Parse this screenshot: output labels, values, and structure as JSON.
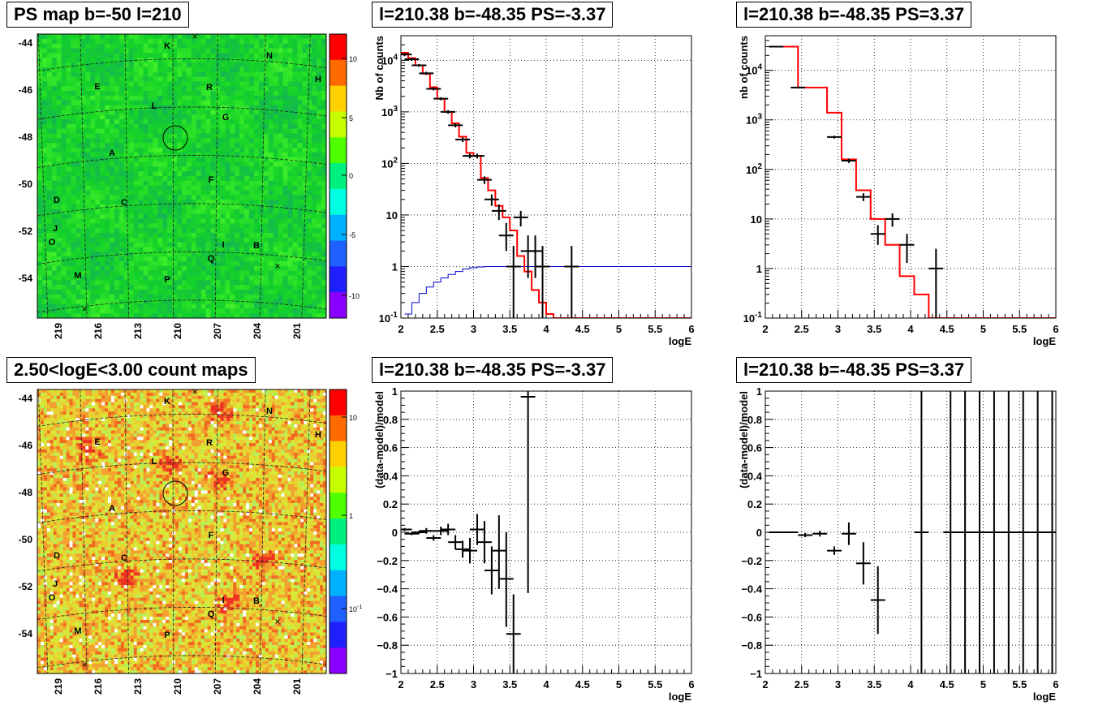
{
  "map1": {
    "title": "PS map b=-50 l=210",
    "yticks": [
      "-44",
      "-46",
      "-48",
      "-50",
      "-52",
      "-54"
    ],
    "xticks": [
      "219",
      "216",
      "213",
      "210",
      "207",
      "204",
      "201"
    ],
    "colorbar_ticks": [
      "10",
      "5",
      "0",
      "-5",
      "-10"
    ],
    "labels": [
      "K",
      "N",
      "H",
      "E",
      "R",
      "L",
      "G",
      "A",
      "F",
      "D",
      "C",
      "J",
      "O",
      "I",
      "B",
      "Q",
      "M",
      "P"
    ]
  },
  "map2": {
    "title": "2.50<logE<3.00 count maps",
    "yticks": [
      "-44",
      "-46",
      "-48",
      "-50",
      "-52",
      "-54"
    ],
    "xticks": [
      "219",
      "216",
      "213",
      "210",
      "207",
      "204",
      "201"
    ],
    "colorbar_ticks": [
      "10",
      "1",
      "10-1"
    ],
    "labels": [
      "K",
      "N",
      "H",
      "E",
      "R",
      "L",
      "G",
      "A",
      "F",
      "D",
      "C",
      "J",
      "O",
      "I",
      "B",
      "Q",
      "M",
      "P"
    ]
  },
  "chart_data": [
    {
      "id": "spec_neg",
      "type": "line",
      "title": "l=210.38 b=-48.35 PS=-3.37",
      "xlabel": "logE",
      "ylabel": "Nb of counts",
      "xlim": [
        2,
        6
      ],
      "ylim": [
        0.1,
        30000
      ],
      "yscale": "log",
      "xticks": [
        "2",
        "2.5",
        "3",
        "3.5",
        "4",
        "4.5",
        "5",
        "5.5",
        "6"
      ],
      "yticks": [
        "10^-1",
        "1",
        "10",
        "10^2",
        "10^3",
        "10^4"
      ],
      "grid": true,
      "model_red": {
        "edges": [
          2.0,
          2.1,
          2.2,
          2.3,
          2.4,
          2.5,
          2.6,
          2.7,
          2.8,
          2.9,
          3.0,
          3.1,
          3.2,
          3.3,
          3.4,
          3.5,
          3.6,
          3.7,
          3.8,
          3.9,
          4.0,
          4.1,
          6.0
        ],
        "values": [
          14000,
          11000,
          8000,
          5500,
          3000,
          1800,
          1000,
          600,
          330,
          160,
          140,
          52,
          30,
          15,
          9,
          5,
          1.6,
          0.8,
          0.35,
          0.2,
          0.12,
          0.1
        ]
      },
      "model_blue": {
        "edges": [
          2.05,
          2.15,
          2.25,
          2.35,
          2.45,
          2.55,
          2.65,
          2.75,
          2.85,
          2.95,
          3.05,
          3.15,
          3.25,
          3.45,
          6.0
        ],
        "values": [
          0.12,
          0.2,
          0.3,
          0.4,
          0.5,
          0.6,
          0.7,
          0.8,
          0.9,
          0.95,
          0.98,
          1.0,
          1.0,
          1.0
        ]
      },
      "points": [
        {
          "x": 2.05,
          "y": 13000,
          "lo": 12000,
          "hi": 14000
        },
        {
          "x": 2.15,
          "y": 10500,
          "lo": 9800,
          "hi": 11200
        },
        {
          "x": 2.25,
          "y": 8000,
          "lo": 7500,
          "hi": 8500
        },
        {
          "x": 2.35,
          "y": 5600,
          "lo": 5200,
          "hi": 6000
        },
        {
          "x": 2.45,
          "y": 2800,
          "lo": 2600,
          "hi": 3000
        },
        {
          "x": 2.55,
          "y": 1800,
          "lo": 1680,
          "hi": 1920
        },
        {
          "x": 2.65,
          "y": 1000,
          "lo": 920,
          "hi": 1080
        },
        {
          "x": 2.75,
          "y": 550,
          "lo": 500,
          "hi": 600
        },
        {
          "x": 2.85,
          "y": 290,
          "lo": 260,
          "hi": 320
        },
        {
          "x": 2.95,
          "y": 140,
          "lo": 125,
          "hi": 155
        },
        {
          "x": 3.05,
          "y": 140,
          "lo": 125,
          "hi": 155
        },
        {
          "x": 3.15,
          "y": 48,
          "lo": 40,
          "hi": 56
        },
        {
          "x": 3.25,
          "y": 20,
          "lo": 15,
          "hi": 25
        },
        {
          "x": 3.35,
          "y": 12,
          "lo": 8,
          "hi": 16
        },
        {
          "x": 3.45,
          "y": 4,
          "lo": 2,
          "hi": 7
        },
        {
          "x": 3.55,
          "y": 1,
          "lo": 0.1,
          "hi": 2.5
        },
        {
          "x": 3.65,
          "y": 9,
          "lo": 6,
          "hi": 12
        },
        {
          "x": 3.75,
          "y": 2,
          "lo": 0.6,
          "hi": 4
        },
        {
          "x": 3.85,
          "y": 2,
          "lo": 0.6,
          "hi": 4
        },
        {
          "x": 3.95,
          "y": 1,
          "lo": 0.1,
          "hi": 2.5
        },
        {
          "x": 4.35,
          "y": 1,
          "lo": 0.1,
          "hi": 2.5
        }
      ]
    },
    {
      "id": "spec_pos",
      "type": "line",
      "title": "l=210.38 b=-48.35 PS=3.37",
      "xlabel": "logE",
      "ylabel": "nb of counts",
      "xlim": [
        2,
        6
      ],
      "ylim": [
        0.1,
        50000
      ],
      "yscale": "log",
      "xticks": [
        "2",
        "2.5",
        "3",
        "3.5",
        "4",
        "4.5",
        "5",
        "5.5",
        "6"
      ],
      "yticks": [
        "10^-1",
        "1",
        "10",
        "10^2",
        "10^3",
        "10^4"
      ],
      "grid": true,
      "model_red": {
        "edges": [
          2.05,
          2.45,
          2.85,
          3.05,
          3.25,
          3.45,
          3.65,
          3.85,
          4.05,
          4.25,
          6.0
        ],
        "values": [
          30000,
          4500,
          1400,
          160,
          38,
          10,
          3,
          0.7,
          0.3,
          0.1
        ]
      },
      "points": [
        {
          "x": 2.15,
          "y": 30000,
          "lo": 29000,
          "hi": 31000
        },
        {
          "x": 2.45,
          "y": 4500,
          "lo": 4300,
          "hi": 4700
        },
        {
          "x": 2.95,
          "y": 450,
          "lo": 420,
          "hi": 480
        },
        {
          "x": 3.15,
          "y": 150,
          "lo": 135,
          "hi": 165
        },
        {
          "x": 3.35,
          "y": 28,
          "lo": 23,
          "hi": 33
        },
        {
          "x": 3.55,
          "y": 5,
          "lo": 3,
          "hi": 7.5
        },
        {
          "x": 3.75,
          "y": 10,
          "lo": 7,
          "hi": 13
        },
        {
          "x": 3.95,
          "y": 3,
          "lo": 1.3,
          "hi": 5
        },
        {
          "x": 4.35,
          "y": 1,
          "lo": 0.1,
          "hi": 2.5
        }
      ]
    },
    {
      "id": "resid_neg",
      "type": "scatter",
      "title": "l=210.38 b=-48.35 PS=-3.37",
      "xlabel": "logE",
      "ylabel": "(data-model)/model",
      "xlim": [
        2,
        6
      ],
      "ylim": [
        -1,
        1
      ],
      "xticks": [
        "2",
        "2.5",
        "3",
        "3.5",
        "4",
        "4.5",
        "5",
        "5.5",
        "6"
      ],
      "yticks": [
        "−1",
        "−0.8",
        "−0.6",
        "−0.4",
        "−0.2",
        "0",
        "0.2",
        "0.4",
        "0.6",
        "0.8",
        "1"
      ],
      "grid": true,
      "points": [
        {
          "x": 2.05,
          "y": 0.02,
          "lo": 0.01,
          "hi": 0.03
        },
        {
          "x": 2.15,
          "y": -0.01,
          "lo": -0.02,
          "hi": 0.0
        },
        {
          "x": 2.25,
          "y": 0.0,
          "lo": -0.01,
          "hi": 0.01
        },
        {
          "x": 2.35,
          "y": 0.01,
          "lo": -0.01,
          "hi": 0.03
        },
        {
          "x": 2.45,
          "y": -0.04,
          "lo": -0.06,
          "hi": -0.02
        },
        {
          "x": 2.55,
          "y": 0.01,
          "lo": -0.02,
          "hi": 0.04
        },
        {
          "x": 2.65,
          "y": 0.02,
          "lo": -0.02,
          "hi": 0.06
        },
        {
          "x": 2.75,
          "y": -0.07,
          "lo": -0.12,
          "hi": -0.02
        },
        {
          "x": 2.85,
          "y": -0.12,
          "lo": -0.18,
          "hi": -0.06
        },
        {
          "x": 2.95,
          "y": -0.13,
          "lo": -0.22,
          "hi": -0.04
        },
        {
          "x": 3.05,
          "y": 0.02,
          "lo": -0.09,
          "hi": 0.13
        },
        {
          "x": 3.15,
          "y": -0.07,
          "lo": -0.22,
          "hi": 0.08
        },
        {
          "x": 3.25,
          "y": -0.27,
          "lo": -0.44,
          "hi": -0.1
        },
        {
          "x": 3.35,
          "y": -0.13,
          "lo": -0.4,
          "hi": 0.12
        },
        {
          "x": 3.45,
          "y": -0.33,
          "lo": -0.67,
          "hi": 0.0
        },
        {
          "x": 3.55,
          "y": -0.72,
          "lo": -1.0,
          "hi": -0.44
        },
        {
          "x": 3.75,
          "y": 0.96,
          "lo": -0.43,
          "hi": 1.0
        }
      ]
    },
    {
      "id": "resid_pos",
      "type": "scatter",
      "title": "l=210.38 b=-48.35 PS=3.37",
      "xlabel": "logE",
      "ylabel": "(data-model)/model",
      "xlim": [
        2,
        6
      ],
      "ylim": [
        -1,
        1
      ],
      "xticks": [
        "2",
        "2.5",
        "3",
        "3.5",
        "4",
        "4.5",
        "5",
        "5.5",
        "6"
      ],
      "yticks": [
        "−1",
        "−0.8",
        "−0.6",
        "−0.4",
        "−0.2",
        "0",
        "0.2",
        "0.4",
        "0.6",
        "0.8",
        "1"
      ],
      "grid": true,
      "points": [
        {
          "x": 2.15,
          "y": 0.0,
          "lo": -0.005,
          "hi": 0.005
        },
        {
          "x": 2.35,
          "y": 0.0,
          "lo": -0.005,
          "hi": 0.005
        },
        {
          "x": 2.55,
          "y": -0.02,
          "lo": -0.035,
          "hi": -0.005
        },
        {
          "x": 2.75,
          "y": -0.01,
          "lo": -0.03,
          "hi": 0.01
        },
        {
          "x": 2.95,
          "y": -0.13,
          "lo": -0.16,
          "hi": -0.1
        },
        {
          "x": 3.15,
          "y": -0.01,
          "lo": -0.09,
          "hi": 0.07
        },
        {
          "x": 3.35,
          "y": -0.22,
          "lo": -0.37,
          "hi": -0.07
        },
        {
          "x": 3.55,
          "y": -0.48,
          "lo": -0.72,
          "hi": -0.24
        },
        {
          "x": 4.15,
          "y": 0.0,
          "lo": -1.0,
          "hi": 1.0
        },
        {
          "x": 4.55,
          "y": 0.0,
          "lo": -1.0,
          "hi": 1.0
        },
        {
          "x": 4.75,
          "y": 0.0,
          "lo": -1.0,
          "hi": 1.0
        },
        {
          "x": 4.95,
          "y": 0.0,
          "lo": -1.0,
          "hi": 1.0
        },
        {
          "x": 5.15,
          "y": 0.0,
          "lo": -1.0,
          "hi": 1.0
        },
        {
          "x": 5.35,
          "y": 0.0,
          "lo": -1.0,
          "hi": 1.0
        },
        {
          "x": 5.55,
          "y": 0.0,
          "lo": -1.0,
          "hi": 1.0
        },
        {
          "x": 5.75,
          "y": 0.0,
          "lo": -1.0,
          "hi": 1.0
        },
        {
          "x": 5.95,
          "y": 0.0,
          "lo": -1.0,
          "hi": 1.0
        }
      ]
    }
  ]
}
